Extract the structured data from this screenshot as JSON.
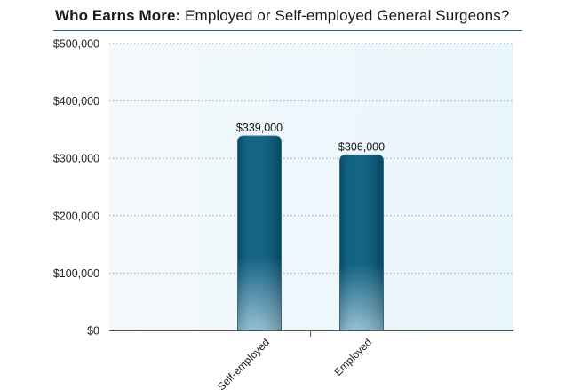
{
  "title": {
    "bold": "Who Earns More:",
    "rest": " Employed or Self-employed General Surgeons?"
  },
  "colors": {
    "bar_top": "#035a7e",
    "bar_bottom": "#8fbdd0",
    "plot_bg_left": "#f4f9fc",
    "plot_bg_right": "#e8f5fb",
    "grid": "#9aa5ab",
    "title_rule": "#2f5f7a"
  },
  "chart_data": {
    "type": "bar",
    "title": "Who Earns More: Employed or Self-employed General Surgeons?",
    "categories": [
      "Self-employed",
      "Employed"
    ],
    "values": [
      339000,
      306000
    ],
    "value_labels": [
      "$339,000",
      "$306,000"
    ],
    "ylim": [
      0,
      500000
    ],
    "yticks": [
      0,
      100000,
      200000,
      300000,
      400000,
      500000
    ],
    "ytick_labels": [
      "$0",
      "$100,000",
      "$200,000",
      "$300,000",
      "$400,000",
      "$500,000"
    ],
    "xlabel": "",
    "ylabel": "",
    "grid": true,
    "legend": "none"
  }
}
